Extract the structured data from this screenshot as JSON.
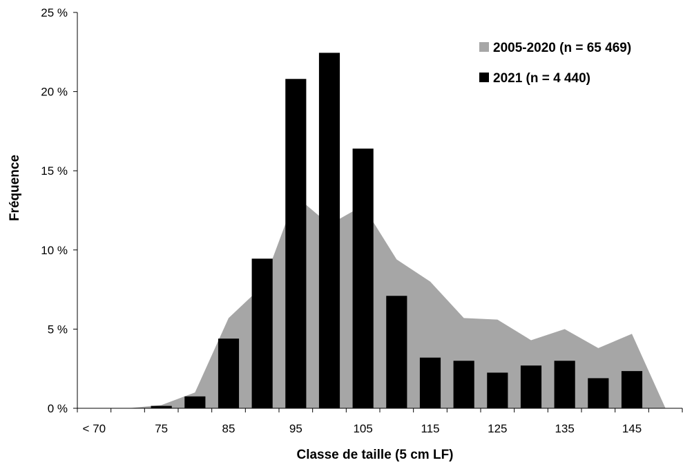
{
  "chart_data": {
    "type": "bar",
    "title": "",
    "xlabel": "Classe de taille (5 cm LF)",
    "ylabel": "Fréquence",
    "ylim": [
      0,
      25
    ],
    "y_ticks": [
      0,
      5,
      10,
      15,
      20,
      25
    ],
    "y_tick_labels": [
      "0 %",
      "5 %",
      "10 %",
      "15 %",
      "20 %",
      "25 %"
    ],
    "categories": [
      "< 70",
      "70",
      "75",
      "80",
      "85",
      "90",
      "95",
      "100",
      "105",
      "110",
      "115",
      "120",
      "125",
      "130",
      "135",
      "140",
      "145",
      "150"
    ],
    "x_tick_labels": [
      "< 70",
      "",
      "75",
      "",
      "85",
      "",
      "95",
      "",
      "105",
      "",
      "115",
      "",
      "125",
      "",
      "135",
      "",
      "145",
      ""
    ],
    "grid": false,
    "legend_position": "top-right",
    "series": [
      {
        "name": "2005-2020 (n = 65 469)",
        "type": "area",
        "color": "#a6a6a6",
        "values": [
          0,
          0,
          0.2,
          1.0,
          5.7,
          7.7,
          13.4,
          11.6,
          12.8,
          9.4,
          8.0,
          5.7,
          5.6,
          4.3,
          5.0,
          3.8,
          4.7,
          0
        ]
      },
      {
        "name": "2021 (n = 4 440)",
        "type": "bar",
        "color": "#000000",
        "values": [
          0,
          0,
          0.15,
          0.75,
          4.4,
          9.45,
          20.8,
          22.45,
          16.4,
          7.1,
          3.2,
          3.0,
          2.25,
          2.7,
          3.0,
          1.9,
          2.35,
          0
        ]
      }
    ]
  }
}
